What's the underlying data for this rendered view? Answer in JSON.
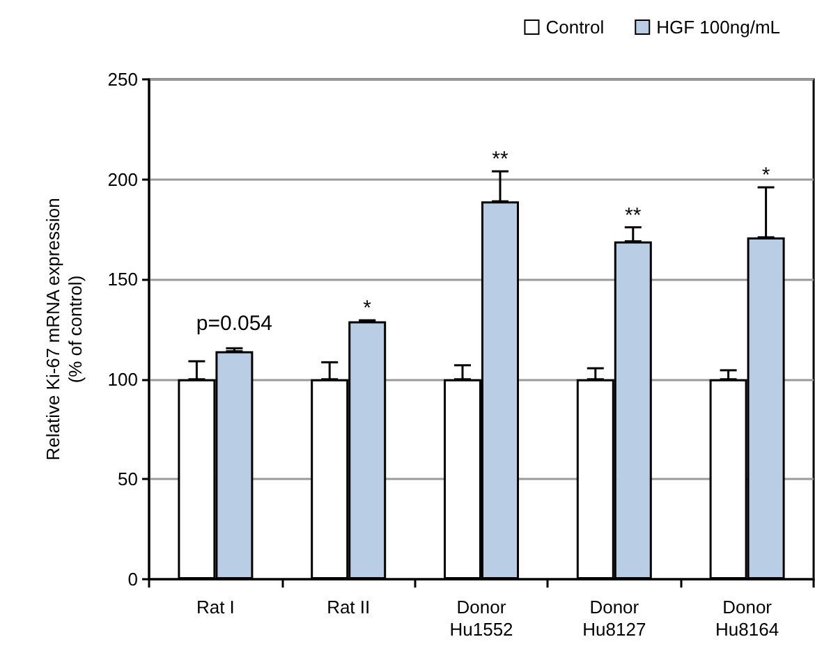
{
  "chart_data": {
    "type": "bar",
    "ylabel": "Relative Ki-67 mRNA expression\n(% of control)",
    "categories": [
      "Rat I",
      "Rat II",
      "Donor\nHu1552",
      "Donor\nHu8127",
      "Donor\nHu8164"
    ],
    "series": [
      {
        "name": "Control",
        "color": "#ffffff",
        "values": [
          100,
          100,
          100,
          100,
          100
        ],
        "errors": [
          [
            100,
            109
          ],
          [
            100,
            108.5
          ],
          [
            100,
            107
          ],
          [
            100,
            105.5
          ],
          [
            100,
            104.5
          ]
        ]
      },
      {
        "name": "HGF 100ng/mL",
        "color": "#b9cde5",
        "values": [
          114,
          129,
          189,
          169,
          171
        ],
        "errors": [
          [
            114,
            115.5
          ],
          [
            129,
            129.5
          ],
          [
            189,
            204
          ],
          [
            169,
            176
          ],
          [
            171,
            196
          ]
        ]
      }
    ],
    "ylim": [
      0,
      250
    ],
    "yticks": [
      0,
      50,
      100,
      150,
      200,
      250
    ],
    "grid": "y",
    "legend": "top right",
    "annotations": [
      {
        "text": "p=0.054",
        "x": "Rat I",
        "y": 114
      },
      {
        "text": "*",
        "x": "Rat II",
        "y": 129
      },
      {
        "text": "**",
        "x": "Donor\nHu1552",
        "y": 189
      },
      {
        "text": "**",
        "x": "Donor\nHu8127",
        "y": 169
      },
      {
        "text": "*",
        "x": "Donor\nHu8164",
        "y": 171
      }
    ]
  }
}
